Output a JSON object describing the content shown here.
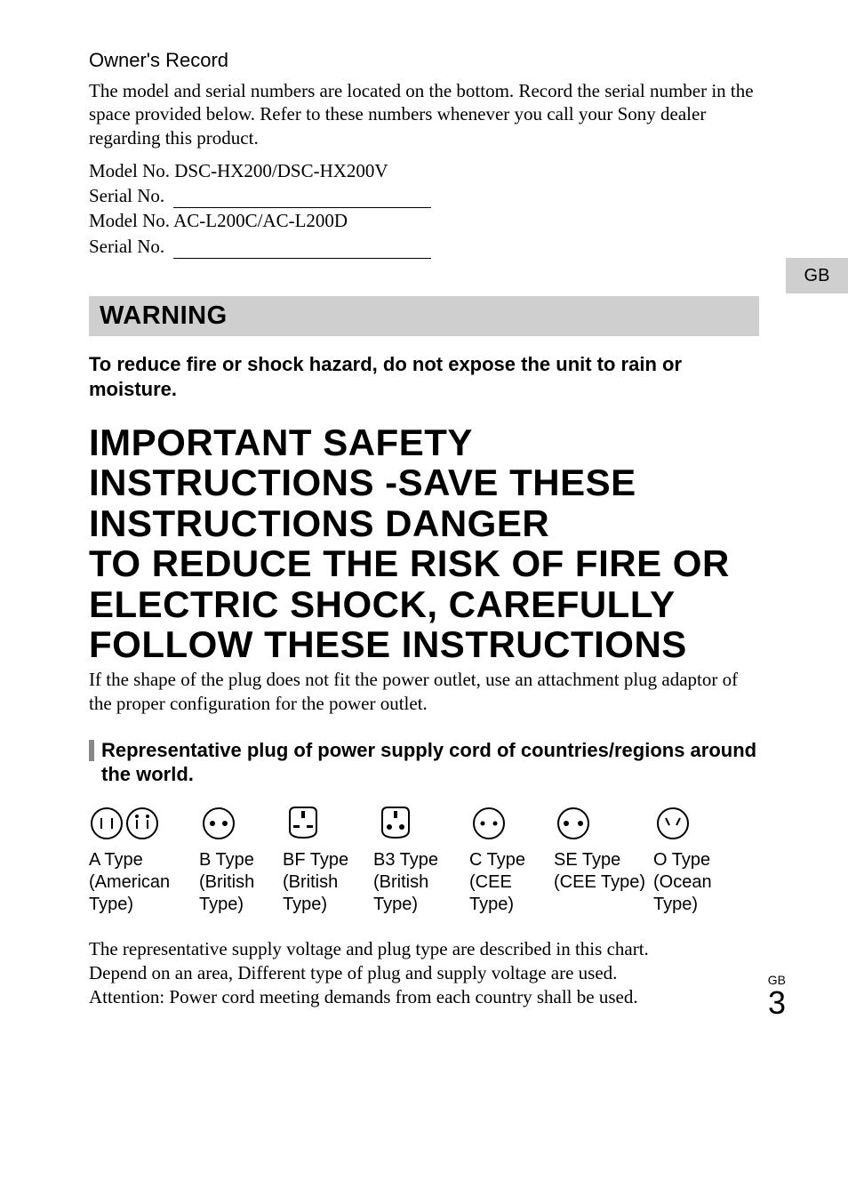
{
  "owners": {
    "title": "Owner's Record",
    "body": "The model and serial numbers are located on the bottom. Record the serial number in the space provided below. Refer to these numbers whenever you call your Sony dealer regarding this product.",
    "model1": "Model No. DSC-HX200/DSC-HX200V",
    "serial_label": "Serial No.",
    "model2": "Model No. AC-L200C/AC-L200D"
  },
  "gb_tab": "GB",
  "warning": {
    "title": "WARNING",
    "body": "To reduce fire or shock hazard, do not expose the unit to rain or moisture."
  },
  "heading": "IMPORTANT SAFETY INSTRUCTIONS -SAVE THESE INSTRUCTIONS DANGER\nTO REDUCE THE RISK OF FIRE OR ELECTRIC SHOCK, CAREFULLY FOLLOW THESE INSTRUCTIONS",
  "after_heading": "If the shape of the plug does not fit the power outlet, use an attachment plug adaptor of the proper configuration for the power outlet.",
  "sub_heading": "Representative plug of power supply cord of countries/regions around the world.",
  "plugs": [
    {
      "name": "A Type",
      "desc": "(American Type)"
    },
    {
      "name": "B Type",
      "desc": "(British Type)"
    },
    {
      "name": "BF Type",
      "desc": "(British Type)"
    },
    {
      "name": "B3 Type",
      "desc": "(British Type)"
    },
    {
      "name": "C Type",
      "desc": "(CEE Type)"
    },
    {
      "name": "SE Type",
      "desc": "(CEE Type)"
    },
    {
      "name": "O Type",
      "desc": "(Ocean Type)"
    }
  ],
  "chart_note": "The representative supply voltage and plug type are described in this chart.\nDepend on an area, Different type of plug and supply voltage are used.\nAttention: Power cord meeting demands from each country shall be used.",
  "footer": {
    "gb": "GB",
    "num": "3"
  },
  "colors": {
    "background": "#ffffff",
    "text": "#000000",
    "grey_box": "#cfcfcf",
    "sub_bar": "#888888"
  }
}
